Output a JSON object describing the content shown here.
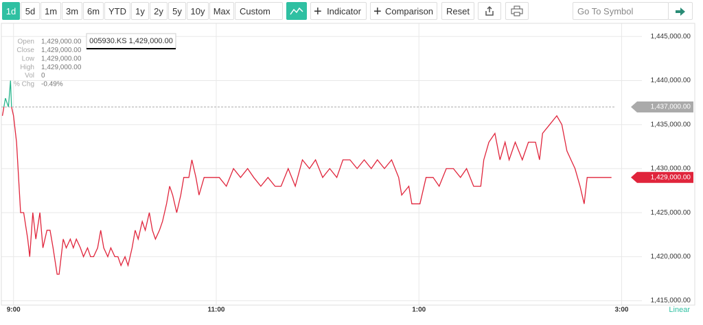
{
  "toolbar": {
    "ranges": [
      "1d",
      "5d",
      "1m",
      "3m",
      "6m",
      "YTD",
      "1y",
      "2y",
      "5y",
      "10y",
      "Max",
      "Custom"
    ],
    "indicator": "Indicator",
    "comparison": "Comparison",
    "reset": "Reset",
    "search_placeholder": "Go To Symbol"
  },
  "info_panel": {
    "rows": [
      {
        "label": "Open",
        "value": "1,429,000.00"
      },
      {
        "label": "Close",
        "value": "1,429,000.00"
      },
      {
        "label": "Low",
        "value": "1,429,000.00"
      },
      {
        "label": "High",
        "value": "1,429,000.00"
      },
      {
        "label": "Vol",
        "value": "0"
      },
      {
        "label": "% Chg",
        "value": "-0.49%"
      }
    ]
  },
  "tooltip": "005930.KS 1,429,000.00",
  "scale_mode": "Linear",
  "chart_data": {
    "type": "line",
    "color": "#e0243b",
    "up_color": "#27b58c",
    "x": [
      8.89,
      8.92,
      8.95,
      8.97,
      8.98,
      9.0,
      9.03,
      9.07,
      9.1,
      9.14,
      9.16,
      9.19,
      9.22,
      9.26,
      9.29,
      9.33,
      9.36,
      9.39,
      9.43,
      9.45,
      9.49,
      9.52,
      9.56,
      9.59,
      9.62,
      9.66,
      9.69,
      9.73,
      9.76,
      9.79,
      9.83,
      9.86,
      9.89,
      9.93,
      9.96,
      10.0,
      10.03,
      10.06,
      10.1,
      10.13,
      10.17,
      10.2,
      10.23,
      10.27,
      10.3,
      10.34,
      10.37,
      10.4,
      10.44,
      10.47,
      10.51,
      10.54,
      10.57,
      10.61,
      10.65,
      10.68,
      10.73,
      10.76,
      10.8,
      10.83,
      10.88,
      10.97,
      11.03,
      11.1,
      11.17,
      11.24,
      11.31,
      11.37,
      11.44,
      11.51,
      11.58,
      11.64,
      11.71,
      11.78,
      11.85,
      11.92,
      11.98,
      12.05,
      12.12,
      12.19,
      12.25,
      12.32,
      12.39,
      12.46,
      12.53,
      12.59,
      12.66,
      12.73,
      12.8,
      12.83,
      12.9,
      12.93,
      13.01,
      13.07,
      13.14,
      13.2,
      13.27,
      13.34,
      13.41,
      13.47,
      13.54,
      13.61,
      13.64,
      13.69,
      13.75,
      13.8,
      13.85,
      13.89,
      13.95,
      14.02,
      14.08,
      14.15,
      14.19,
      14.22,
      14.29,
      14.36,
      14.41,
      14.46,
      14.5,
      14.54,
      14.59,
      14.63,
      14.66,
      14.71,
      14.9
    ],
    "values": [
      1436000,
      1438000,
      1437000,
      1440000,
      1437000,
      1436000,
      1433000,
      1425000,
      1425000,
      1422000,
      1420000,
      1425000,
      1422000,
      1425000,
      1421000,
      1423000,
      1423000,
      1421000,
      1418000,
      1418000,
      1422000,
      1421000,
      1422000,
      1421000,
      1422000,
      1421000,
      1420000,
      1421000,
      1420000,
      1420000,
      1421000,
      1423000,
      1421000,
      1420000,
      1421000,
      1420000,
      1420000,
      1419000,
      1420000,
      1419000,
      1421000,
      1423000,
      1422000,
      1424000,
      1423000,
      1425000,
      1423000,
      1422000,
      1423000,
      1424000,
      1426000,
      1428000,
      1427000,
      1425000,
      1427000,
      1429000,
      1429000,
      1431000,
      1429000,
      1427000,
      1429000,
      1429000,
      1429000,
      1428000,
      1430000,
      1429000,
      1430000,
      1429000,
      1428000,
      1429000,
      1428000,
      1428000,
      1430000,
      1428000,
      1431000,
      1430000,
      1431000,
      1429000,
      1430000,
      1429000,
      1431000,
      1431000,
      1430000,
      1431000,
      1430000,
      1431000,
      1430000,
      1431000,
      1429000,
      1427000,
      1428000,
      1426000,
      1426000,
      1429000,
      1429000,
      1428000,
      1430000,
      1430000,
      1429000,
      1430000,
      1428000,
      1428000,
      1431000,
      1433000,
      1434000,
      1431000,
      1433000,
      1431000,
      1433000,
      1431000,
      1433000,
      1433000,
      1431000,
      1434000,
      1435000,
      1436000,
      1435000,
      1432000,
      1431000,
      1430000,
      1428000,
      1426000,
      1429000,
      1429000,
      1429000
    ],
    "xlim": [
      8.88,
      15.2
    ],
    "xticks": [
      {
        "value": 9,
        "label": "9:00"
      },
      {
        "value": 11,
        "label": "11:00"
      },
      {
        "value": 13,
        "label": "1:00"
      },
      {
        "value": 15,
        "label": "3:00"
      }
    ],
    "ylim": [
      1414500,
      1446500
    ],
    "yticks": [
      {
        "value": 1415000,
        "label": "1,415,000.00"
      },
      {
        "value": 1420000,
        "label": "1,420,000.00"
      },
      {
        "value": 1425000,
        "label": "1,425,000.00"
      },
      {
        "value": 1430000,
        "label": "1,430,000.00"
      },
      {
        "value": 1435000,
        "label": "1,435,000.00"
      },
      {
        "value": 1440000,
        "label": "1,440,000.00"
      },
      {
        "value": 1445000,
        "label": "1,445,000.00"
      }
    ],
    "grid": true,
    "reference_lines": [
      {
        "value": 1437000,
        "label": "1,437,000.00",
        "color": "#aaaaaa",
        "dashed": true
      },
      {
        "value": 1429000,
        "label": "1,429,000.00",
        "color": "#e0243b",
        "dashed": false
      }
    ]
  }
}
